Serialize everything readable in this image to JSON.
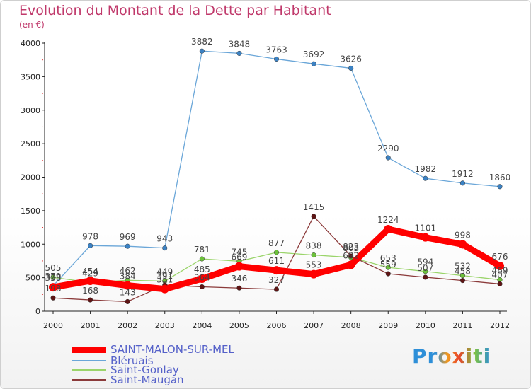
{
  "title": "Evolution du Montant de la Dette par Habitant",
  "subtitle": "(en €)",
  "logo_text": "Proxiti",
  "chart_data": {
    "type": "line",
    "x": [
      "2000",
      "2001",
      "2002",
      "2003",
      "2004",
      "2005",
      "2006",
      "2007",
      "2008",
      "2009",
      "2010",
      "2011",
      "2012"
    ],
    "ylim": [
      0,
      4000
    ],
    "yticks": [
      "0",
      "500",
      "1000",
      "1500",
      "2000",
      "2500",
      "3000",
      "3500",
      "4000"
    ],
    "grid": false,
    "legend_position": "bottom-left",
    "series": [
      {
        "name": "SAINT-MALON-SUR-MEL",
        "color": "#ff0000",
        "marker_color": "#ff0000",
        "values": [
          358,
          454,
          384,
          331,
          485,
          669,
          611,
          553,
          692,
          1224,
          1101,
          998,
          676
        ],
        "labels": [
          "358",
          "454",
          "384",
          "331",
          "485",
          "669",
          "611",
          "553",
          "692",
          "1224",
          "1101",
          "998",
          "676"
        ]
      },
      {
        "name": "Bléruais",
        "color": "#6aa6d8",
        "marker_color": "#3b82c4",
        "values": [
          379,
          978,
          969,
          943,
          3882,
          3848,
          3763,
          3692,
          3626,
          2290,
          1982,
          1912,
          1860
        ],
        "labels": [
          "379",
          "978",
          "969",
          "943",
          "3882",
          "3848",
          "3763",
          "3692",
          "3626",
          "2290",
          "1982",
          "1912",
          "1860"
        ]
      },
      {
        "name": "Saint-Gonlay",
        "color": "#9ad46a",
        "marker_color": "#6cc13a",
        "values": [
          505,
          429,
          462,
          449,
          781,
          745,
          877,
          838,
          803,
          653,
          594,
          532,
          469
        ],
        "labels": [
          "505",
          "429",
          "462",
          "449",
          "781",
          "745",
          "877",
          "838",
          "803",
          "653",
          "594",
          "532",
          "469"
        ]
      },
      {
        "name": "Saint-Maugan",
        "color": "#8b3a3a",
        "marker_color": "#5e1414",
        "values": [
          198,
          168,
          143,
          391,
          364,
          346,
          327,
          1415,
          823,
          559,
          507,
          458,
          407
        ],
        "labels": [
          "198",
          "168",
          "143",
          "391",
          "364",
          "346",
          "327",
          "1415",
          "823",
          "559",
          "507",
          "458",
          "407"
        ]
      }
    ]
  }
}
